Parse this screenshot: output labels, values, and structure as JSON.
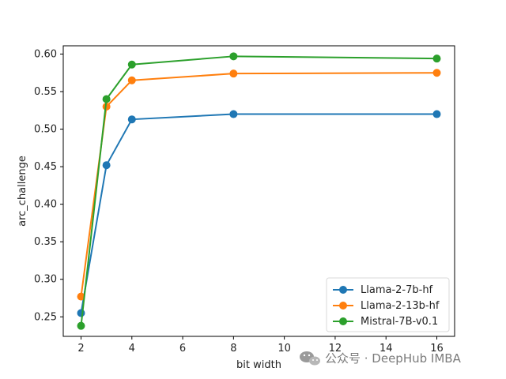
{
  "chart_data": {
    "type": "line",
    "title": "",
    "xlabel": "bit width",
    "ylabel": "arc_challenge",
    "x": [
      2,
      3,
      4,
      8,
      16
    ],
    "xlim": [
      1.3,
      16.7
    ],
    "ylim": [
      0.224,
      0.611
    ],
    "xticks": [
      2,
      4,
      6,
      8,
      10,
      12,
      14,
      16
    ],
    "yticks": [
      0.25,
      0.3,
      0.35,
      0.4,
      0.45,
      0.5,
      0.55,
      0.6
    ],
    "grid": false,
    "legend_position": "lower-right",
    "series": [
      {
        "name": "Llama-2-7b-hf",
        "color": "#1f77b4",
        "values": [
          0.255,
          0.452,
          0.513,
          0.52,
          0.52
        ]
      },
      {
        "name": "Llama-2-13b-hf",
        "color": "#ff7f0e",
        "values": [
          0.277,
          0.53,
          0.565,
          0.574,
          0.575
        ]
      },
      {
        "name": "Mistral-7B-v0.1",
        "color": "#2ca02c",
        "values": [
          0.238,
          0.54,
          0.586,
          0.597,
          0.594
        ]
      }
    ]
  },
  "watermark": {
    "text": "公众号 · DeepHub IMBA",
    "icon": "wechat-icon"
  }
}
